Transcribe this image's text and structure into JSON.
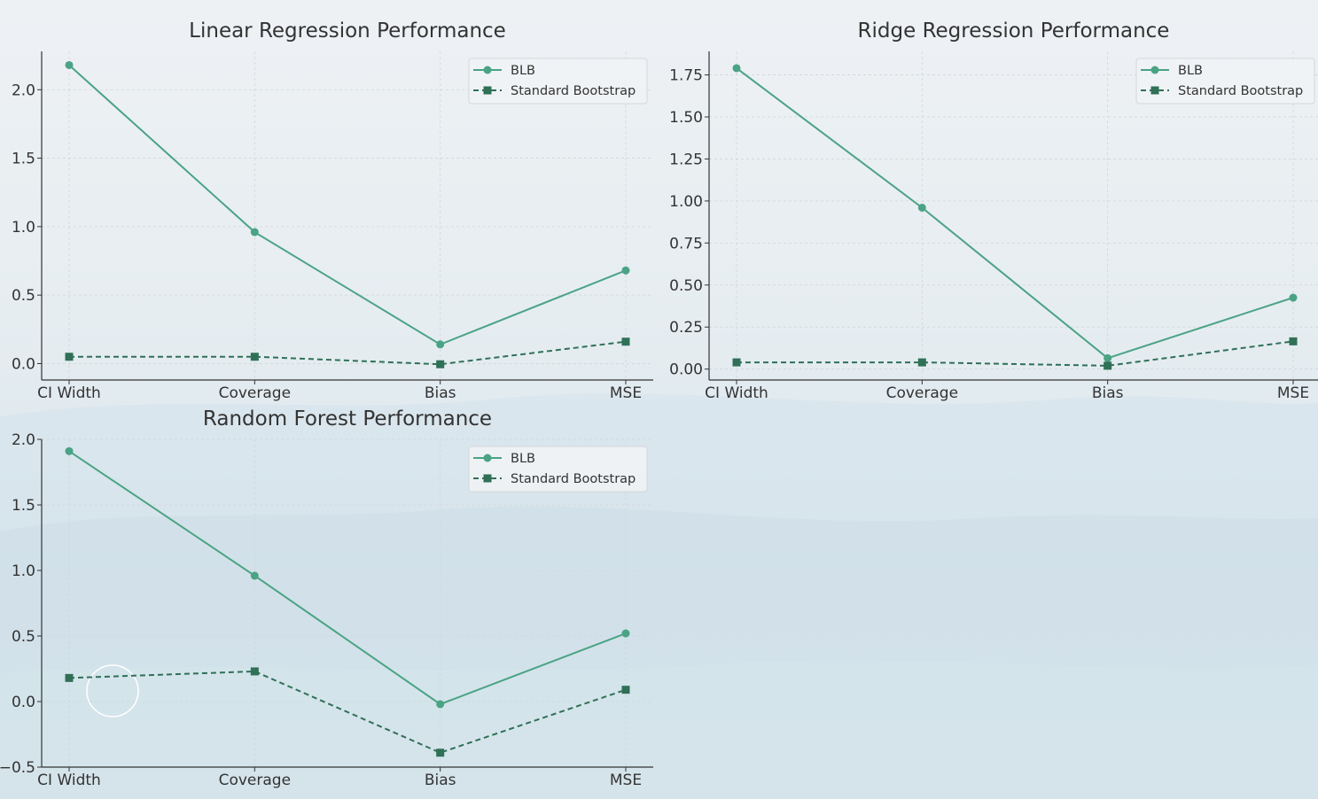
{
  "colors": {
    "blb": "#4aa384",
    "standard": "#2f7057",
    "grid": "#cfd6da",
    "axis": "#333333",
    "text": "#333333"
  },
  "chart_data": [
    {
      "type": "line",
      "title": "Linear Regression Performance",
      "categories": [
        "CI Width",
        "Coverage",
        "Bias",
        "MSE"
      ],
      "yticks": [
        0.0,
        0.5,
        1.0,
        1.5,
        2.0
      ],
      "ytick_labels": [
        "0.0",
        "0.5",
        "1.0",
        "1.5",
        "2.0"
      ],
      "ylim": [
        -0.12,
        2.28
      ],
      "grid": true,
      "legend_position": "top-right",
      "series": [
        {
          "name": "BLB",
          "style": "solid",
          "marker": "circle",
          "values": [
            2.18,
            0.96,
            0.14,
            0.68
          ]
        },
        {
          "name": "Standard Bootstrap",
          "style": "dashed",
          "marker": "square",
          "values": [
            0.05,
            0.05,
            -0.005,
            0.16
          ]
        }
      ]
    },
    {
      "type": "line",
      "title": "Ridge Regression Performance",
      "categories": [
        "CI Width",
        "Coverage",
        "Bias",
        "MSE"
      ],
      "yticks": [
        0.0,
        0.25,
        0.5,
        0.75,
        1.0,
        1.25,
        1.5,
        1.75
      ],
      "ytick_labels": [
        "0.00",
        "0.25",
        "0.50",
        "0.75",
        "1.00",
        "1.25",
        "1.50",
        "1.75"
      ],
      "ylim": [
        -0.065,
        1.89
      ],
      "grid": true,
      "legend_position": "top-right",
      "series": [
        {
          "name": "BLB",
          "style": "solid",
          "marker": "circle",
          "values": [
            1.79,
            0.96,
            0.065,
            0.425
          ]
        },
        {
          "name": "Standard Bootstrap",
          "style": "dashed",
          "marker": "square",
          "values": [
            0.04,
            0.04,
            0.02,
            0.165
          ]
        }
      ]
    },
    {
      "type": "line",
      "title": "Random Forest Performance",
      "categories": [
        "CI Width",
        "Coverage",
        "Bias",
        "MSE"
      ],
      "yticks": [
        -0.5,
        0.0,
        0.5,
        1.0,
        1.5,
        2.0
      ],
      "ytick_labels": [
        "−0.5",
        "0.0",
        "0.5",
        "1.0",
        "1.5",
        "2.0"
      ],
      "ylim": [
        -0.5,
        2.0
      ],
      "grid": true,
      "legend_position": "top-right",
      "series": [
        {
          "name": "BLB",
          "style": "solid",
          "marker": "circle",
          "values": [
            1.91,
            0.96,
            -0.02,
            0.52
          ]
        },
        {
          "name": "Standard Bootstrap",
          "style": "dashed",
          "marker": "square",
          "values": [
            0.18,
            0.23,
            -0.39,
            0.09
          ]
        }
      ]
    }
  ]
}
